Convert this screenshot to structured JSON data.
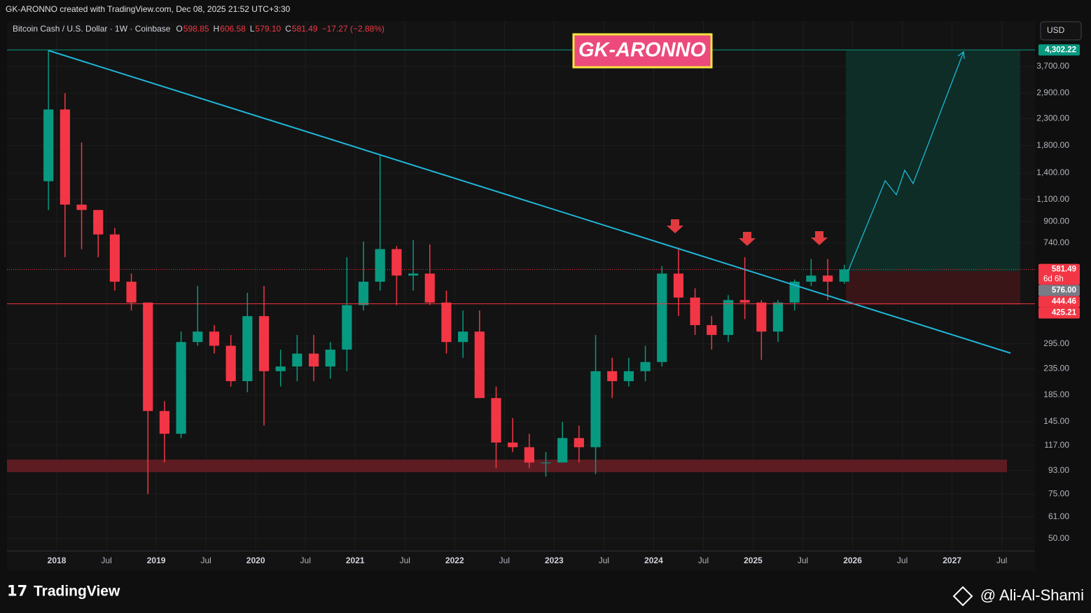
{
  "header": {
    "credit": "GK-ARONNO created with TradingView.com, Dec 08, 2025 21:52 UTC+3:30",
    "symbol": "Bitcoin Cash / U.S. Dollar · 1W · Coinbase",
    "ohlc": [
      {
        "label": "O",
        "value": "598.85"
      },
      {
        "label": "H",
        "value": "606.58"
      },
      {
        "label": "L",
        "value": "579.10"
      },
      {
        "label": "C",
        "value": "581.49"
      }
    ],
    "change": "−17.27 (−2.88%)",
    "currency": "USD",
    "banner": "GK-ARONNO"
  },
  "footer": {
    "brand": "TradingView",
    "author": "@ Ali-Al-Shami"
  },
  "chart_data": {
    "type": "candlestick",
    "log_scale": true,
    "grid": true,
    "up_color": "#089981",
    "down_color": "#f23645",
    "ylim": [
      44.5,
      5600
    ],
    "yticks": [
      {
        "value": 3700,
        "label": "3,700.00"
      },
      {
        "value": 2900,
        "label": "2,900.00"
      },
      {
        "value": 2300,
        "label": "2,300.00"
      },
      {
        "value": 1800,
        "label": "1,800.00"
      },
      {
        "value": 1400,
        "label": "1,400.00"
      },
      {
        "value": 1100,
        "label": "1,100.00"
      },
      {
        "value": 900,
        "label": "900.00"
      },
      {
        "value": 740,
        "label": "740.00"
      },
      {
        "value": 295,
        "label": "295.00"
      },
      {
        "value": 235,
        "label": "235.00"
      },
      {
        "value": 185,
        "label": "185.00"
      },
      {
        "value": 145,
        "label": "145.00"
      },
      {
        "value": 117,
        "label": "117.00"
      },
      {
        "value": 93,
        "label": "93.00"
      },
      {
        "value": 75,
        "label": "75.00"
      },
      {
        "value": 61,
        "label": "61.00"
      },
      {
        "value": 50,
        "label": "50.00"
      }
    ],
    "xlim": [
      "2017-07",
      "2027-11"
    ],
    "xticks": [
      {
        "value": "2018-01",
        "label": "2018"
      },
      {
        "value": "2018-07",
        "label": "Jul"
      },
      {
        "value": "2019-01",
        "label": "2019"
      },
      {
        "value": "2019-07",
        "label": "Jul"
      },
      {
        "value": "2020-01",
        "label": "2020"
      },
      {
        "value": "2020-07",
        "label": "Jul"
      },
      {
        "value": "2021-01",
        "label": "2021"
      },
      {
        "value": "2021-07",
        "label": "Jul"
      },
      {
        "value": "2022-01",
        "label": "2022"
      },
      {
        "value": "2022-07",
        "label": "Jul"
      },
      {
        "value": "2023-01",
        "label": "2023"
      },
      {
        "value": "2023-07",
        "label": "Jul"
      },
      {
        "value": "2024-01",
        "label": "2024"
      },
      {
        "value": "2024-07",
        "label": "Jul"
      },
      {
        "value": "2025-01",
        "label": "2025"
      },
      {
        "value": "2025-07",
        "label": "Jul"
      },
      {
        "value": "2026-01",
        "label": "2026"
      },
      {
        "value": "2026-07",
        "label": "Jul"
      },
      {
        "value": "2027-01",
        "label": "2027"
      },
      {
        "value": "2027-07",
        "label": "Jul"
      }
    ],
    "x": [
      "2017-12",
      "2018-02",
      "2018-04",
      "2018-06",
      "2018-08",
      "2018-10",
      "2018-12",
      "2019-02",
      "2019-04",
      "2019-06",
      "2019-08",
      "2019-10",
      "2019-12",
      "2020-02",
      "2020-04",
      "2020-06",
      "2020-08",
      "2020-10",
      "2020-12",
      "2021-02",
      "2021-04",
      "2021-06",
      "2021-08",
      "2021-10",
      "2021-12",
      "2022-02",
      "2022-04",
      "2022-06",
      "2022-08",
      "2022-10",
      "2022-12",
      "2023-02",
      "2023-04",
      "2023-06",
      "2023-08",
      "2023-10",
      "2023-12",
      "2024-02",
      "2024-04",
      "2024-06",
      "2024-08",
      "2024-10",
      "2024-12",
      "2025-02",
      "2025-04",
      "2025-06",
      "2025-08",
      "2025-10",
      "2025-12"
    ],
    "open": [
      1300,
      2500,
      1050,
      1000,
      800,
      520,
      430,
      160,
      130,
      300,
      330,
      290,
      210,
      380,
      230,
      240,
      270,
      240,
      280,
      420,
      520,
      700,
      550,
      560,
      430,
      300,
      330,
      180,
      120,
      115,
      100,
      100,
      125,
      115,
      230,
      210,
      230,
      250,
      560,
      450,
      350,
      320,
      440,
      430,
      330,
      430,
      520,
      550,
      520
    ],
    "high": [
      4300,
      2900,
      1850,
      1000,
      850,
      560,
      430,
      175,
      330,
      500,
      350,
      320,
      470,
      500,
      280,
      320,
      320,
      300,
      650,
      750,
      1640,
      720,
      760,
      730,
      480,
      400,
      400,
      200,
      150,
      130,
      110,
      145,
      140,
      320,
      260,
      260,
      290,
      600,
      710,
      490,
      380,
      460,
      650,
      440,
      440,
      530,
      640,
      640,
      606.58
    ],
    "low": [
      1000,
      650,
      700,
      650,
      480,
      400,
      75,
      100,
      125,
      290,
      270,
      200,
      190,
      140,
      200,
      210,
      210,
      215,
      230,
      400,
      480,
      420,
      480,
      420,
      270,
      260,
      180,
      95,
      110,
      95,
      88,
      100,
      100,
      90,
      180,
      200,
      210,
      240,
      380,
      320,
      280,
      300,
      370,
      255,
      300,
      400,
      500,
      440,
      510
    ],
    "close": [
      2500,
      1050,
      1000,
      800,
      520,
      430,
      160,
      130,
      300,
      330,
      290,
      210,
      380,
      230,
      240,
      270,
      240,
      280,
      420,
      520,
      700,
      550,
      560,
      430,
      300,
      330,
      180,
      120,
      115,
      100,
      100,
      125,
      115,
      230,
      210,
      230,
      250,
      560,
      450,
      350,
      320,
      440,
      430,
      330,
      430,
      520,
      550,
      520,
      581.49
    ],
    "price_labels": [
      {
        "value": 4302.22,
        "label": "4,302.22",
        "color": "#089981",
        "line_style": "solid"
      },
      {
        "value": 581.49,
        "label": "581.49",
        "color": "#f23645",
        "line_style": "dotted"
      },
      {
        "value": 576,
        "label": "576.00",
        "color": "#787b86",
        "line_style": "none"
      },
      {
        "value": 444.46,
        "label": "444.46",
        "color": "#f23645",
        "line_style": "none"
      },
      {
        "value": 425.21,
        "label": "425.21",
        "color": "#f23645",
        "line_style": "solid"
      }
    ],
    "countdown": "6d 6h"
  }
}
